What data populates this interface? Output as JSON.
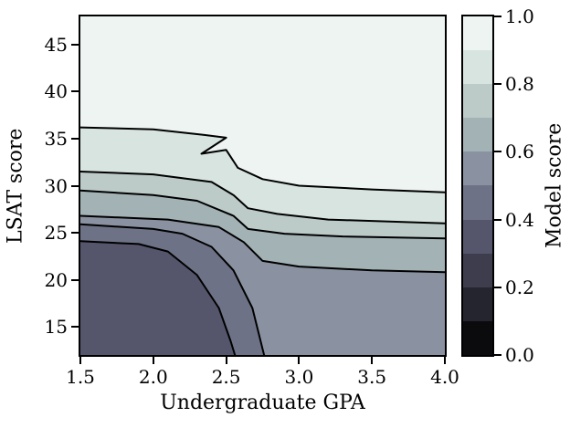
{
  "chart_data": {
    "type": "contour",
    "title": "",
    "xlabel": "Undergraduate GPA",
    "ylabel": "LSAT score",
    "xlim": [
      1.5,
      4.0
    ],
    "ylim": [
      12,
      48
    ],
    "xticks": [
      "1.5",
      "2.0",
      "2.5",
      "3.0",
      "3.5",
      "4.0"
    ],
    "xtick_values": [
      1.5,
      2.0,
      2.5,
      3.0,
      3.5,
      4.0
    ],
    "yticks": [
      "15",
      "20",
      "25",
      "30",
      "35",
      "40",
      "45"
    ],
    "ytick_values": [
      15,
      20,
      25,
      30,
      35,
      40,
      45
    ],
    "grid": false,
    "legend": "none",
    "colorbar": {
      "label": "Model score",
      "ticks": [
        "0.0",
        "0.2",
        "0.4",
        "0.6",
        "0.8",
        "1.0"
      ],
      "tick_values": [
        0.0,
        0.2,
        0.4,
        0.6,
        0.8,
        1.0
      ],
      "band_edges": [
        0.0,
        0.1,
        0.2,
        0.3,
        0.4,
        0.5,
        0.6,
        0.7,
        0.8,
        0.9,
        1.0
      ],
      "band_colors": [
        "#0b0b0e",
        "#25252f",
        "#3d3d4d",
        "#55566c",
        "#6e7287",
        "#8a92a1",
        "#a3b2b5",
        "#bccbc8",
        "#d7e4df",
        "#edf4f1"
      ]
    },
    "base_band": 3,
    "line_color": "#000000",
    "contour_levels": [
      {
        "level": 0.4,
        "band": 4,
        "points": [
          [
            1.5,
            24.1
          ],
          [
            1.9,
            23.8
          ],
          [
            2.1,
            23.0
          ],
          [
            2.3,
            20.5
          ],
          [
            2.45,
            17.0
          ],
          [
            2.53,
            13.5
          ],
          [
            2.56,
            12.0
          ]
        ]
      },
      {
        "level": 0.5,
        "band": 5,
        "points": [
          [
            1.5,
            25.9
          ],
          [
            2.0,
            25.4
          ],
          [
            2.2,
            24.9
          ],
          [
            2.4,
            23.5
          ],
          [
            2.55,
            21.0
          ],
          [
            2.68,
            17.0
          ],
          [
            2.76,
            12.0
          ]
        ]
      },
      {
        "level": 0.6,
        "band": 6,
        "points": [
          [
            1.5,
            26.8
          ],
          [
            2.1,
            26.4
          ],
          [
            2.45,
            25.6
          ],
          [
            2.62,
            24.0
          ],
          [
            2.75,
            22.0
          ],
          [
            3.0,
            21.4
          ],
          [
            3.5,
            21.0
          ],
          [
            4.0,
            20.8
          ]
        ]
      },
      {
        "level": 0.7,
        "band": 7,
        "points": [
          [
            1.5,
            29.5
          ],
          [
            2.0,
            29.0
          ],
          [
            2.3,
            28.4
          ],
          [
            2.55,
            26.8
          ],
          [
            2.65,
            25.4
          ],
          [
            2.9,
            24.9
          ],
          [
            3.3,
            24.6
          ],
          [
            4.0,
            24.4
          ]
        ]
      },
      {
        "level": 0.8,
        "band": 8,
        "points": [
          [
            1.5,
            31.5
          ],
          [
            2.0,
            31.2
          ],
          [
            2.4,
            30.4
          ],
          [
            2.55,
            29.0
          ],
          [
            2.65,
            27.6
          ],
          [
            2.85,
            27.0
          ],
          [
            3.2,
            26.4
          ],
          [
            4.0,
            26.0
          ]
        ]
      },
      {
        "level": 0.9,
        "band": 9,
        "points": [
          [
            1.5,
            36.2
          ],
          [
            2.0,
            36.0
          ],
          [
            2.35,
            35.4
          ],
          [
            2.5,
            35.1
          ],
          [
            2.33,
            33.4
          ],
          [
            2.5,
            33.8
          ],
          [
            2.58,
            31.9
          ],
          [
            2.75,
            30.7
          ],
          [
            3.0,
            30.0
          ],
          [
            3.5,
            29.6
          ],
          [
            4.0,
            29.3
          ]
        ]
      }
    ]
  }
}
